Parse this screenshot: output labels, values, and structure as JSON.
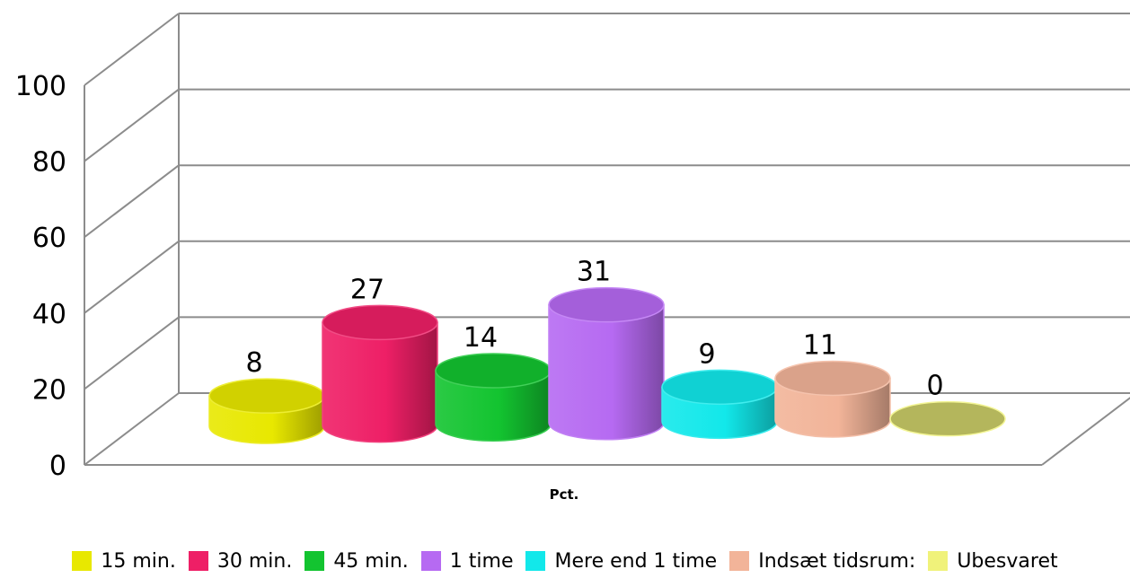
{
  "chart_data": {
    "type": "bar",
    "style": "3d-cylinder",
    "xlabel": "Pct.",
    "ylabel": "",
    "ylim": [
      0,
      100
    ],
    "yticks": [
      0,
      20,
      40,
      60,
      80,
      100
    ],
    "grid": true,
    "legend_position": "bottom",
    "series": [
      {
        "name": "15 min.",
        "value": 8,
        "label": "8",
        "color": "#e8e800"
      },
      {
        "name": "30 min.",
        "value": 27,
        "label": "27",
        "color": "#ee1f66"
      },
      {
        "name": "45 min.",
        "value": 14,
        "label": "14",
        "color": "#13c430"
      },
      {
        "name": "1 time",
        "value": 31,
        "label": "31",
        "color": "#b66af2"
      },
      {
        "name": "Mere end 1 time",
        "value": 9,
        "label": "9",
        "color": "#12e8ea"
      },
      {
        "name": "Indsæt tidsrum:",
        "value": 11,
        "label": "11",
        "color": "#f2b499"
      },
      {
        "name": "Ubesvaret",
        "value": 0,
        "label": "0",
        "color": "#f0f27a"
      }
    ]
  }
}
